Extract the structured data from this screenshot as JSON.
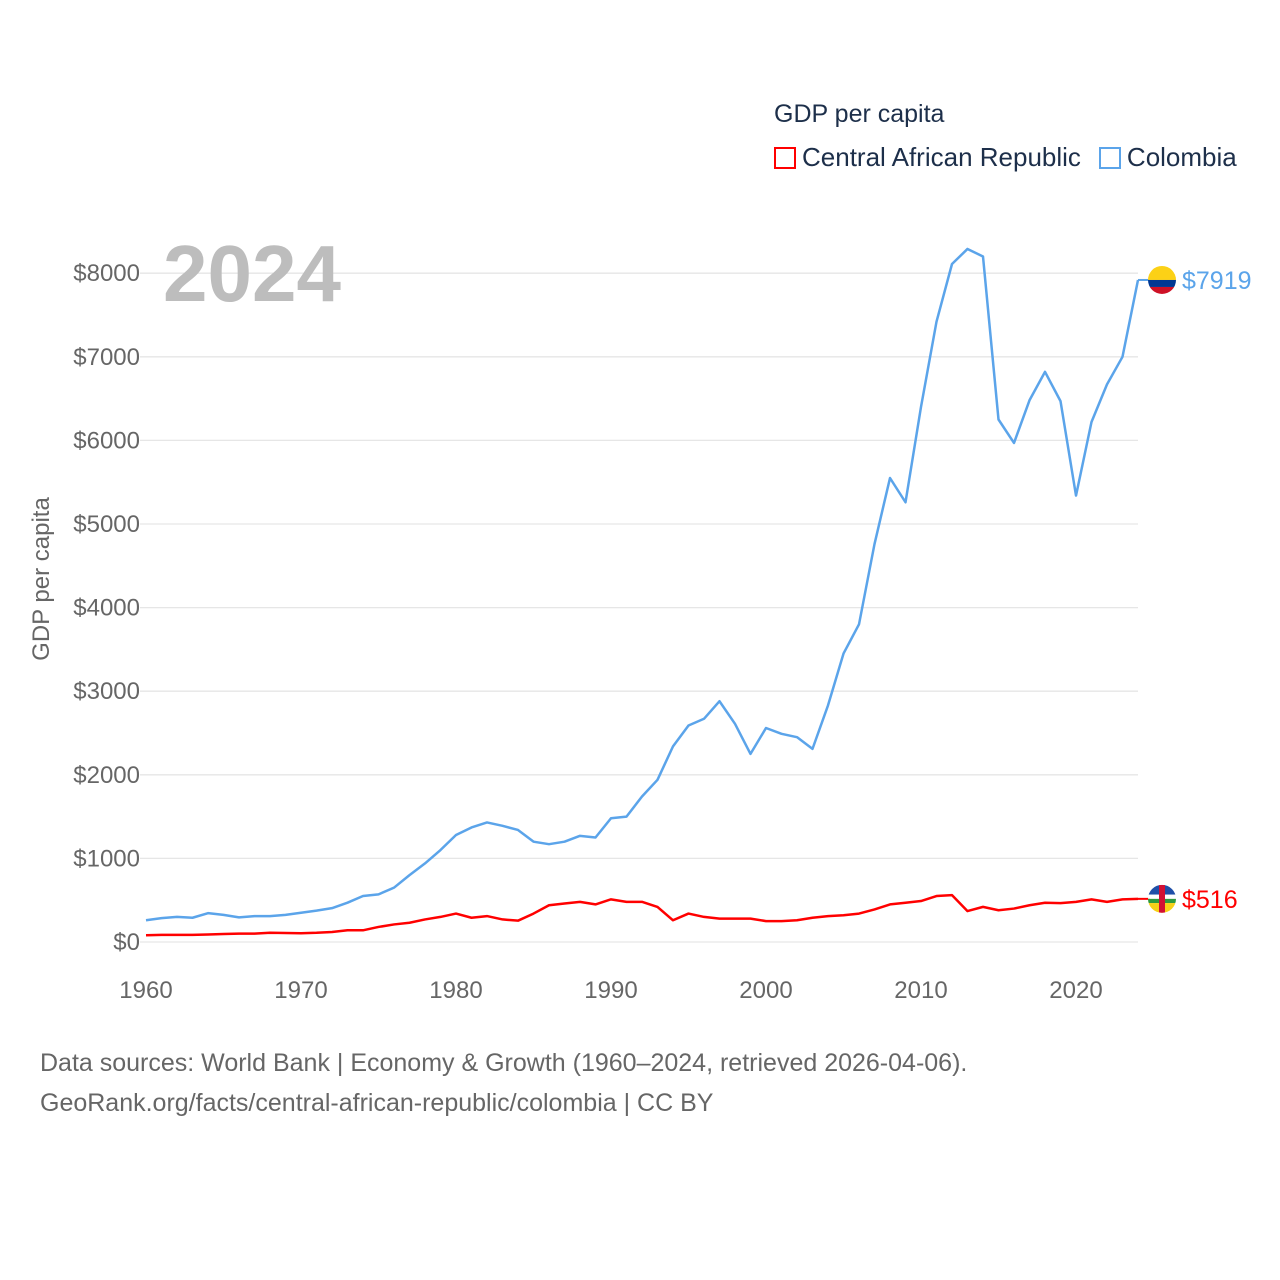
{
  "legend": {
    "title": "GDP per capita",
    "items": [
      {
        "label": "Central African Republic",
        "color": "#ff0000"
      },
      {
        "label": "Colombia",
        "color": "#5ba4ea"
      }
    ]
  },
  "year_label": "2024",
  "footer": {
    "line1": "Data sources: World Bank | Economy & Growth (1960–2024, retrieved 2026-04-06).",
    "line2": "GeoRank.org/facts/central-african-republic/colombia | CC BY"
  },
  "chart_data": {
    "type": "line",
    "title": "GDP per capita",
    "xlabel": "",
    "ylabel": "GDP per capita",
    "xlim": [
      1960,
      2024
    ],
    "ylim": [
      0,
      8300
    ],
    "xticks": [
      1960,
      1970,
      1980,
      1990,
      2000,
      2010,
      2020
    ],
    "yticks": [
      0,
      1000,
      2000,
      3000,
      4000,
      5000,
      6000,
      7000,
      8000
    ],
    "ytick_labels": [
      "$0",
      "$1000",
      "$2000",
      "$3000",
      "$4000",
      "$5000",
      "$6000",
      "$7000",
      "$8000"
    ],
    "grid": true,
    "legend_position": "top-right",
    "x_start": 1960,
    "series": [
      {
        "name": "Central African Republic",
        "color": "#ff0000",
        "end_label": "$516",
        "values": [
          80,
          85,
          85,
          85,
          90,
          95,
          100,
          100,
          110,
          108,
          105,
          110,
          120,
          140,
          140,
          180,
          210,
          230,
          270,
          300,
          340,
          290,
          310,
          270,
          255,
          340,
          440,
          460,
          480,
          450,
          510,
          480,
          480,
          420,
          260,
          340,
          300,
          280,
          280,
          280,
          250,
          250,
          260,
          290,
          310,
          320,
          340,
          390,
          450,
          470,
          490,
          550,
          560,
          370,
          420,
          380,
          400,
          440,
          470,
          465,
          480,
          510,
          480,
          510,
          516
        ]
      },
      {
        "name": "Colombia",
        "color": "#5ba4ea",
        "end_label": "$7919",
        "values": [
          260,
          285,
          300,
          290,
          345,
          325,
          295,
          310,
          310,
          325,
          350,
          375,
          405,
          470,
          550,
          570,
          650,
          800,
          940,
          1100,
          1280,
          1370,
          1430,
          1390,
          1340,
          1200,
          1170,
          1200,
          1270,
          1250,
          1480,
          1500,
          1740,
          1940,
          2340,
          2590,
          2670,
          2880,
          2610,
          2250,
          2560,
          2490,
          2450,
          2310,
          2830,
          3450,
          3800,
          4760,
          5550,
          5260,
          6400,
          7420,
          8110,
          8290,
          8200,
          6250,
          5970,
          6480,
          6820,
          6470,
          5340,
          6220,
          6670,
          7000,
          7919
        ]
      }
    ]
  }
}
